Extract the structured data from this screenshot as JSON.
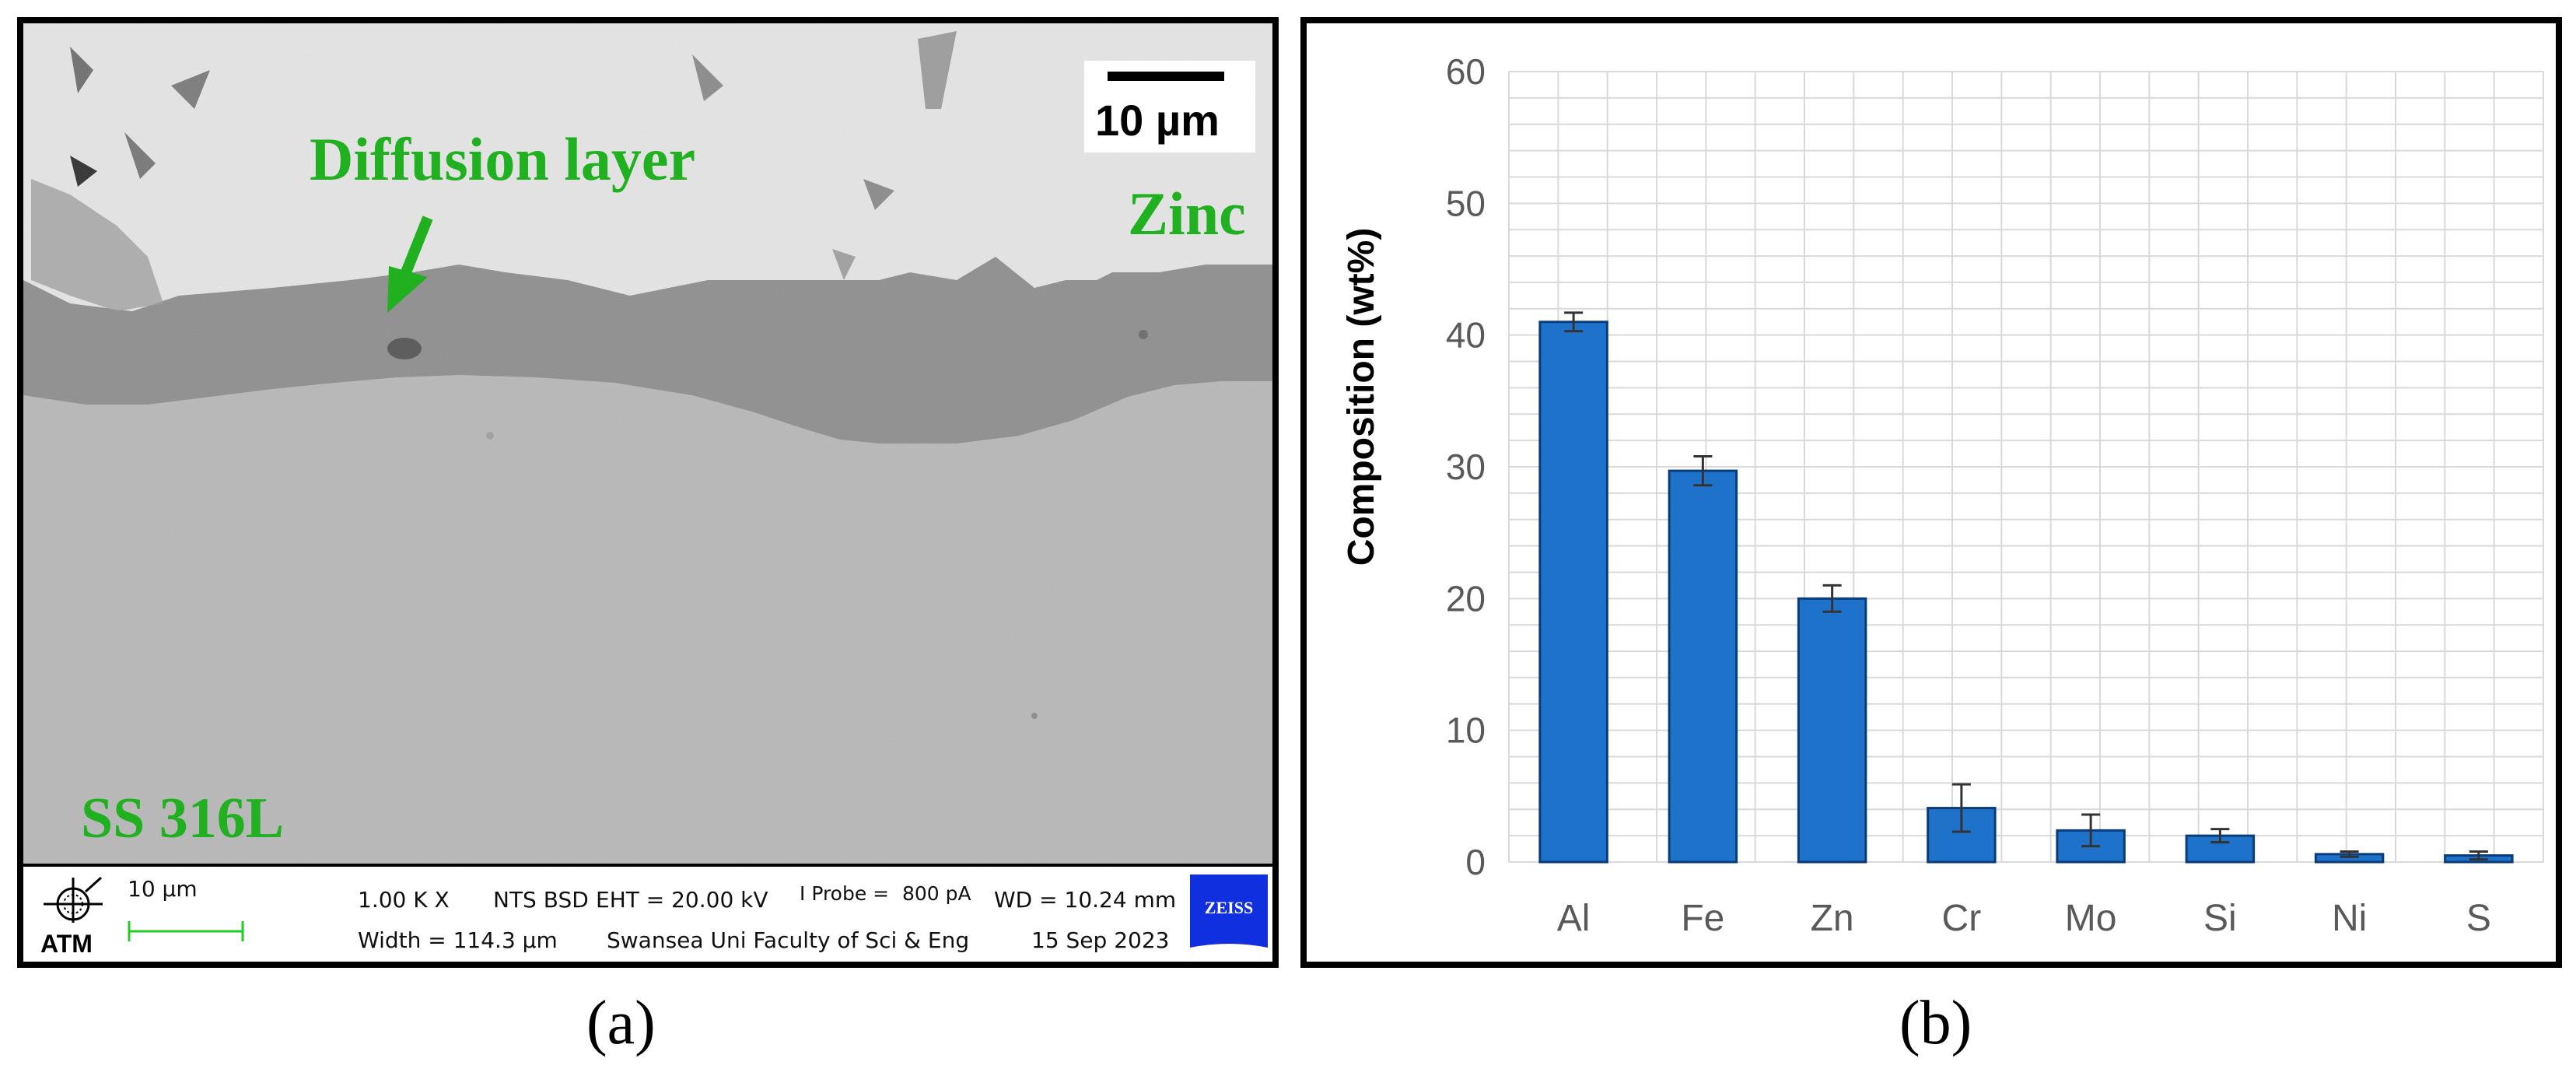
{
  "panel_a": {
    "annotations": {
      "diffusion_layer": "Diffusion layer",
      "zinc": "Zinc",
      "substrate": "SS 316L"
    },
    "scale_bar": "10 µm",
    "info_bar": {
      "logo": "ATM",
      "scale": "10 µm",
      "magnification": "1.00 K X",
      "detector": "NTS BSD",
      "eht": "EHT = 20.00 kV",
      "probe_label": "I Probe =",
      "probe_value": "800 pA",
      "wd": "WD = 10.24 mm",
      "width": "Width = 114.3 µm",
      "institution": "Swansea Uni Faculty of Sci & Eng",
      "date": "15 Sep 2023",
      "brand": "ZEISS"
    },
    "caption": "(a)"
  },
  "panel_b": {
    "caption": "(b)"
  },
  "colors": {
    "bar_fill": "#1f72c9",
    "bar_stroke": "#0b3c7a",
    "annotation_green": "#20b020",
    "grid": "#d9d9d9"
  },
  "chart_data": {
    "type": "bar",
    "categories": [
      "Al",
      "Fe",
      "Zn",
      "Cr",
      "Mo",
      "Si",
      "Ni",
      "S"
    ],
    "values": [
      41.0,
      29.7,
      20.0,
      4.1,
      2.4,
      2.0,
      0.6,
      0.5
    ],
    "error": [
      0.7,
      1.1,
      1.0,
      1.8,
      1.2,
      0.5,
      0.2,
      0.3
    ],
    "ylabel": "Composition (wt%)",
    "ylim": [
      0,
      60
    ],
    "yticks": [
      0,
      10,
      20,
      30,
      40,
      50,
      60
    ],
    "grid": true,
    "error_bars": true
  }
}
